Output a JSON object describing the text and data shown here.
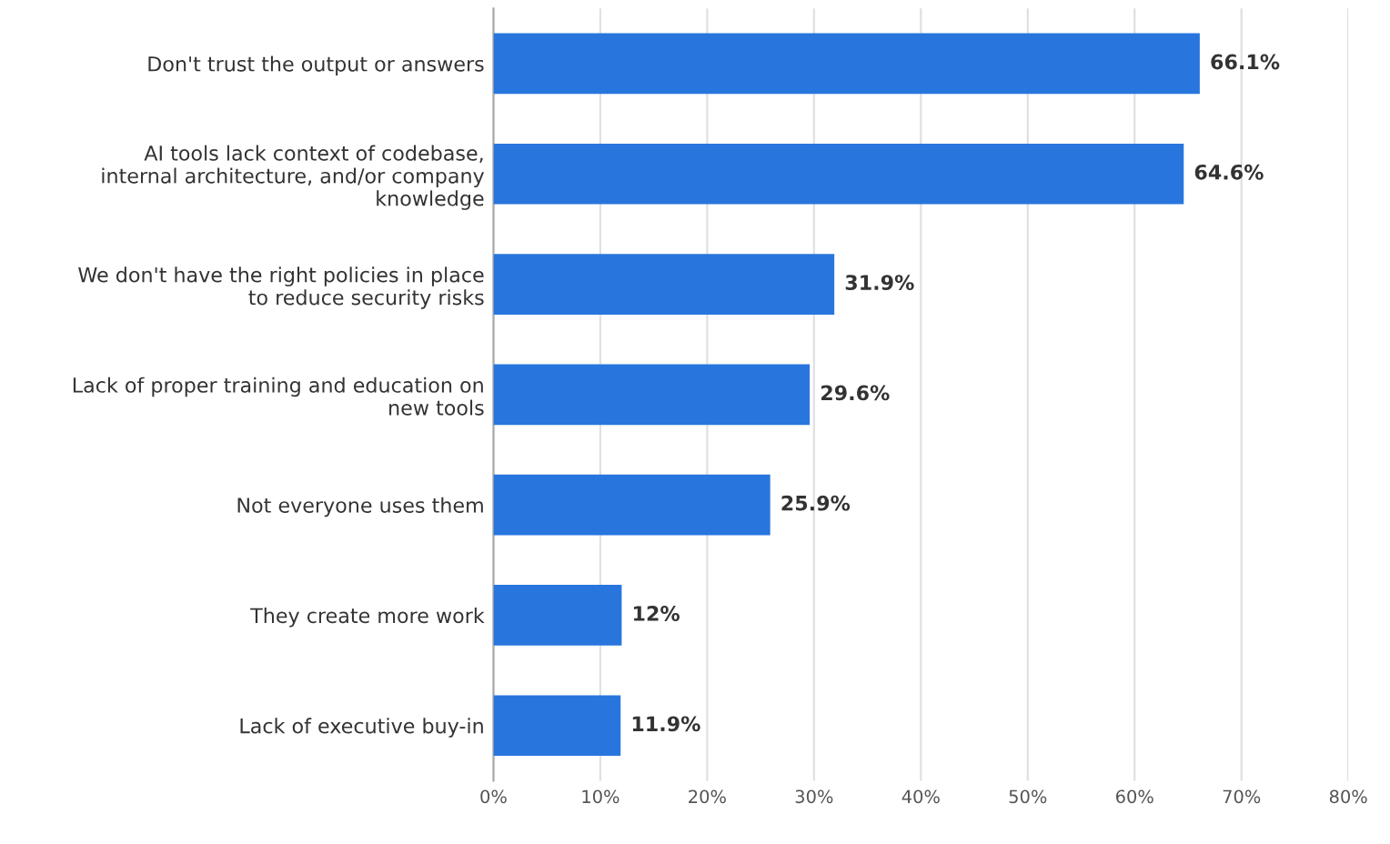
{
  "chart_data": {
    "type": "bar",
    "orientation": "horizontal",
    "categories": [
      "Don't trust the output or answers",
      "AI tools lack context of codebase,\ninternal architecture, and/or company\nknowledge",
      "We don't have the right policies in place\nto reduce security risks",
      "Lack of proper training and education on\nnew tools",
      "Not everyone uses them",
      "They create more work",
      "Lack of executive buy-in"
    ],
    "values": [
      66.1,
      64.6,
      31.9,
      29.6,
      25.9,
      12,
      11.9
    ],
    "value_labels": [
      "66.1%",
      "64.6%",
      "31.9%",
      "29.6%",
      "25.9%",
      "12%",
      "11.9%"
    ],
    "color": "#2876dd",
    "xlim": [
      0,
      80
    ],
    "xticks": [
      {
        "value": 0,
        "label": "0%"
      },
      {
        "value": 10,
        "label": "10%"
      },
      {
        "value": 20,
        "label": "20%"
      },
      {
        "value": 30,
        "label": "30%"
      },
      {
        "value": 40,
        "label": "40%"
      },
      {
        "value": 50,
        "label": "50%"
      },
      {
        "value": 60,
        "label": "60%"
      },
      {
        "value": 70,
        "label": "70%"
      },
      {
        "value": 80,
        "label": "80%"
      }
    ],
    "grid": "x",
    "legend": false
  }
}
